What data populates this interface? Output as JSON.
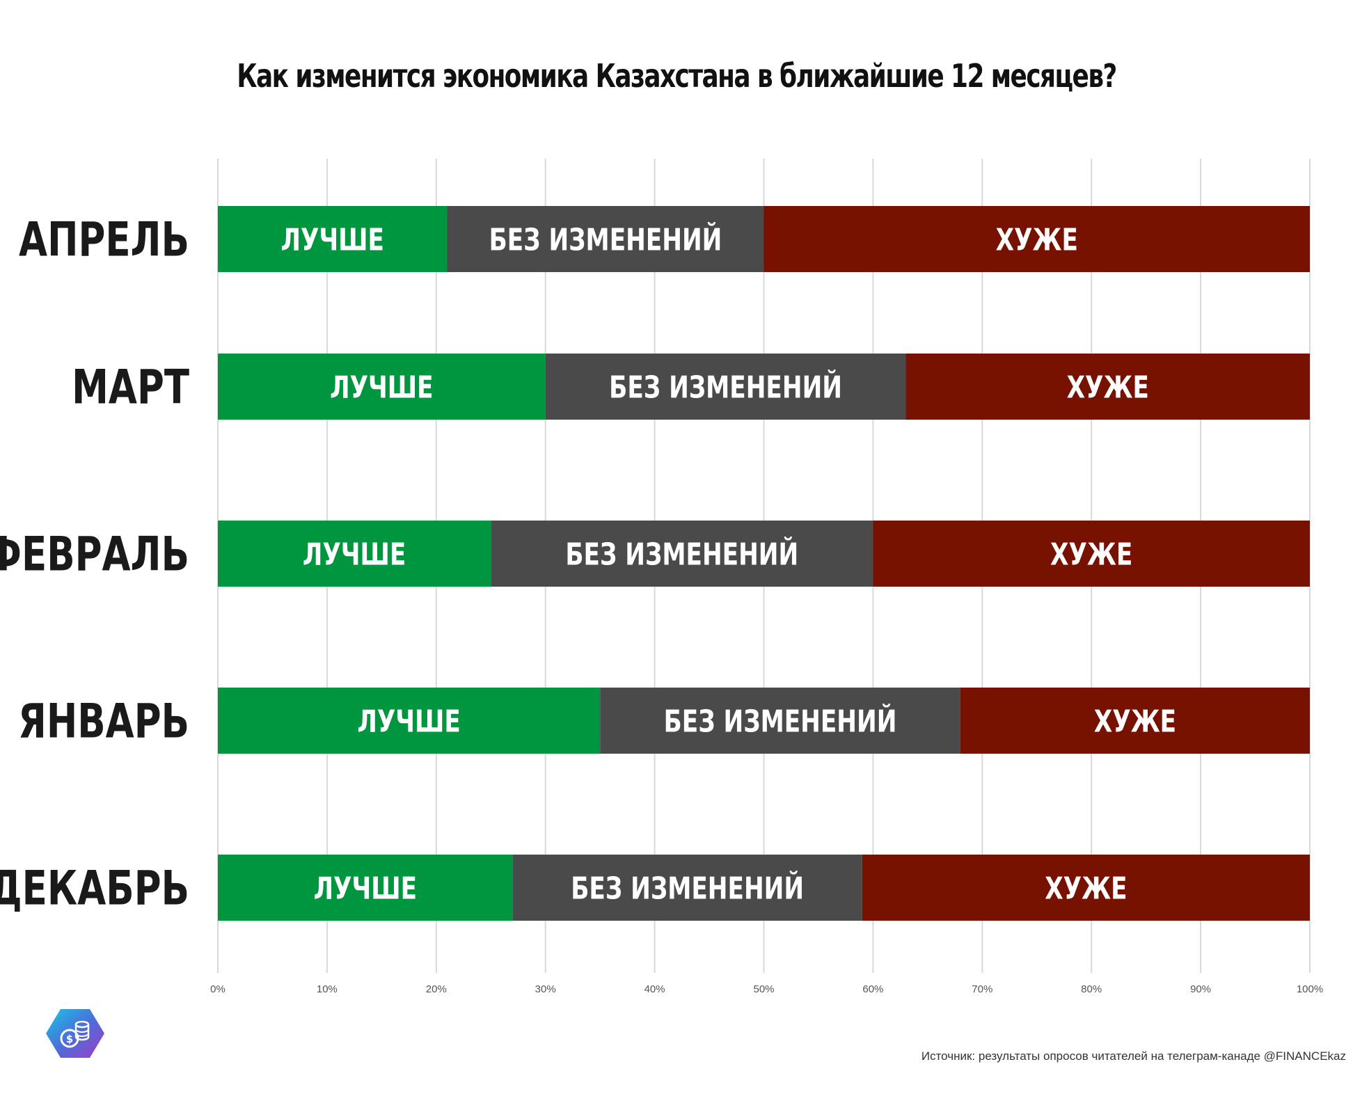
{
  "title": "Как изменится экономика Казахстана в ближайшие 12 месяцев?",
  "source": "Источник: результаты опросов читателей на телеграм-канаде @FINANCEkaz",
  "chart_data": {
    "type": "bar",
    "orientation": "horizontal",
    "stacked": true,
    "percent": true,
    "categories": [
      "АПРЕЛЬ",
      "МАРТ",
      "ФЕВРАЛЬ",
      "ЯНВАРЬ",
      "ДЕКАБРЬ"
    ],
    "series": [
      {
        "name": "ЛУЧШЕ",
        "values": [
          21,
          30,
          25,
          35,
          27
        ],
        "color": "#00953f"
      },
      {
        "name": "БЕЗ ИЗМЕНЕНИЙ",
        "values": [
          29,
          33,
          35,
          33,
          32
        ],
        "color": "#4a4a4a"
      },
      {
        "name": "ХУЖЕ",
        "values": [
          50,
          37,
          40,
          32,
          41
        ],
        "color": "#771100"
      }
    ],
    "x_ticks": [
      "0%",
      "10%",
      "20%",
      "30%",
      "40%",
      "50%",
      "60%",
      "70%",
      "80%",
      "90%",
      "100%"
    ],
    "xlim": [
      0,
      100
    ],
    "grid": true,
    "legend": "none"
  },
  "colors": {
    "better": "#00953f",
    "same": "#4a4a4a",
    "worse": "#771100",
    "grid": "#d9d9d9"
  },
  "logo": {
    "icon": "coins-dollar-icon"
  }
}
